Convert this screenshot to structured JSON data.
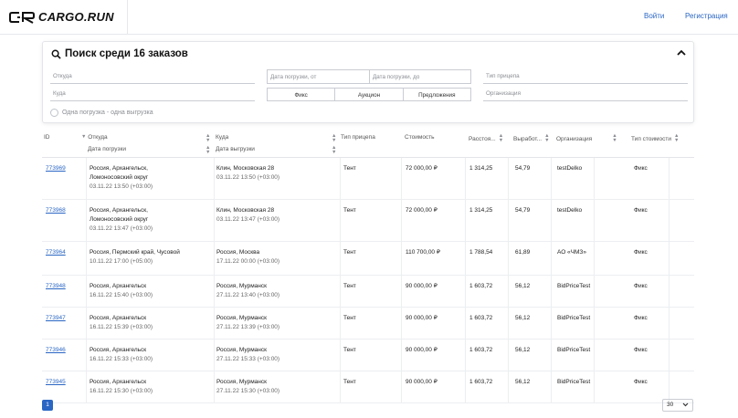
{
  "header": {
    "brand": "CARGO.RUN",
    "login": "Войти",
    "register": "Регистрация"
  },
  "search": {
    "title": "Поиск среди 16 заказов",
    "from_placeholder": "Откуда",
    "to_placeholder": "Куда",
    "date_from": "Дата погрузки, от",
    "date_to": "Дата погрузки, до",
    "trailer_type": "Тип прицепа",
    "organization": "Организация",
    "segments": [
      "Фикс",
      "Аукцион",
      "Предложения"
    ],
    "one_load_label": "Одна погрузка - одна выгрузка"
  },
  "table": {
    "headers": {
      "id": "ID",
      "from": "Откуда",
      "load_date": "Дата погрузки",
      "to": "Куда",
      "unload_date": "Дата выгрузки",
      "trailer": "Тип прицепа",
      "cost": "Стоимость",
      "distance": "Расстоя...",
      "rate": "Выработ...",
      "org": "Организация",
      "cost_type": "Тип стоимости"
    },
    "rows": [
      {
        "id": "773969",
        "from1": "Россия, Архангельск,",
        "from2": "Ломоносовский округ",
        "load_date": "03.11.22 13:50 (+03:00)",
        "to": "Клин, Московская 28",
        "unload_date": "03.11.22 13:50 (+03:00)",
        "trailer": "Тент",
        "cost": "72 000,00 ₽",
        "distance": "1 314,25",
        "rate": "54,79",
        "org": "testDelko",
        "cost_type": "Фикс"
      },
      {
        "id": "773968",
        "from1": "Россия, Архангельск,",
        "from2": "Ломоносовский округ",
        "load_date": "03.11.22 13:47 (+03:00)",
        "to": "Клин, Московская 28",
        "unload_date": "03.11.22 13:47 (+03:00)",
        "trailer": "Тент",
        "cost": "72 000,00 ₽",
        "distance": "1 314,25",
        "rate": "54,79",
        "org": "testDelko",
        "cost_type": "Фикс"
      },
      {
        "id": "773964",
        "from1": "Россия, Пермский край, Чусовой",
        "from2": "",
        "load_date": "10.11.22 17:00 (+05:00)",
        "to": "Россия, Москва",
        "unload_date": "17.11.22 00:00 (+03:00)",
        "trailer": "Тент",
        "cost": "110 700,00 ₽",
        "distance": "1 788,54",
        "rate": "61,89",
        "org": "АО «ЧМЗ»",
        "cost_type": "Фикс"
      },
      {
        "id": "773948",
        "from1": "Россия, Архангельск",
        "from2": "",
        "load_date": "16.11.22 15:40 (+03:00)",
        "to": "Россия, Мурманск",
        "unload_date": "27.11.22 13:40 (+03:00)",
        "trailer": "Тент",
        "cost": "90 000,00 ₽",
        "distance": "1 603,72",
        "rate": "56,12",
        "org": "BidPriceTest",
        "cost_type": "Фикс"
      },
      {
        "id": "773947",
        "from1": "Россия, Архангельск",
        "from2": "",
        "load_date": "16.11.22 15:39 (+03:00)",
        "to": "Россия, Мурманск",
        "unload_date": "27.11.22 13:39 (+03:00)",
        "trailer": "Тент",
        "cost": "90 000,00 ₽",
        "distance": "1 603,72",
        "rate": "56,12",
        "org": "BidPriceTest",
        "cost_type": "Фикс"
      },
      {
        "id": "773946",
        "from1": "Россия, Архангельск",
        "from2": "",
        "load_date": "16.11.22 15:33 (+03:00)",
        "to": "Россия, Мурманск",
        "unload_date": "27.11.22 15:33 (+03:00)",
        "trailer": "Тент",
        "cost": "90 000,00 ₽",
        "distance": "1 603,72",
        "rate": "56,12",
        "org": "BidPriceTest",
        "cost_type": "Фикс"
      },
      {
        "id": "773945",
        "from1": "Россия, Архангельск",
        "from2": "",
        "load_date": "16.11.22 15:30 (+03:00)",
        "to": "Россия, Мурманск",
        "unload_date": "27.11.22 15:30 (+03:00)",
        "trailer": "Тент",
        "cost": "90 000,00 ₽",
        "distance": "1 603,72",
        "rate": "56,12",
        "org": "BidPriceTest",
        "cost_type": "Фикс"
      }
    ]
  },
  "pagination": {
    "current_page": "1",
    "per_page": "30"
  },
  "colors": {
    "accent": "#2a66c4"
  }
}
